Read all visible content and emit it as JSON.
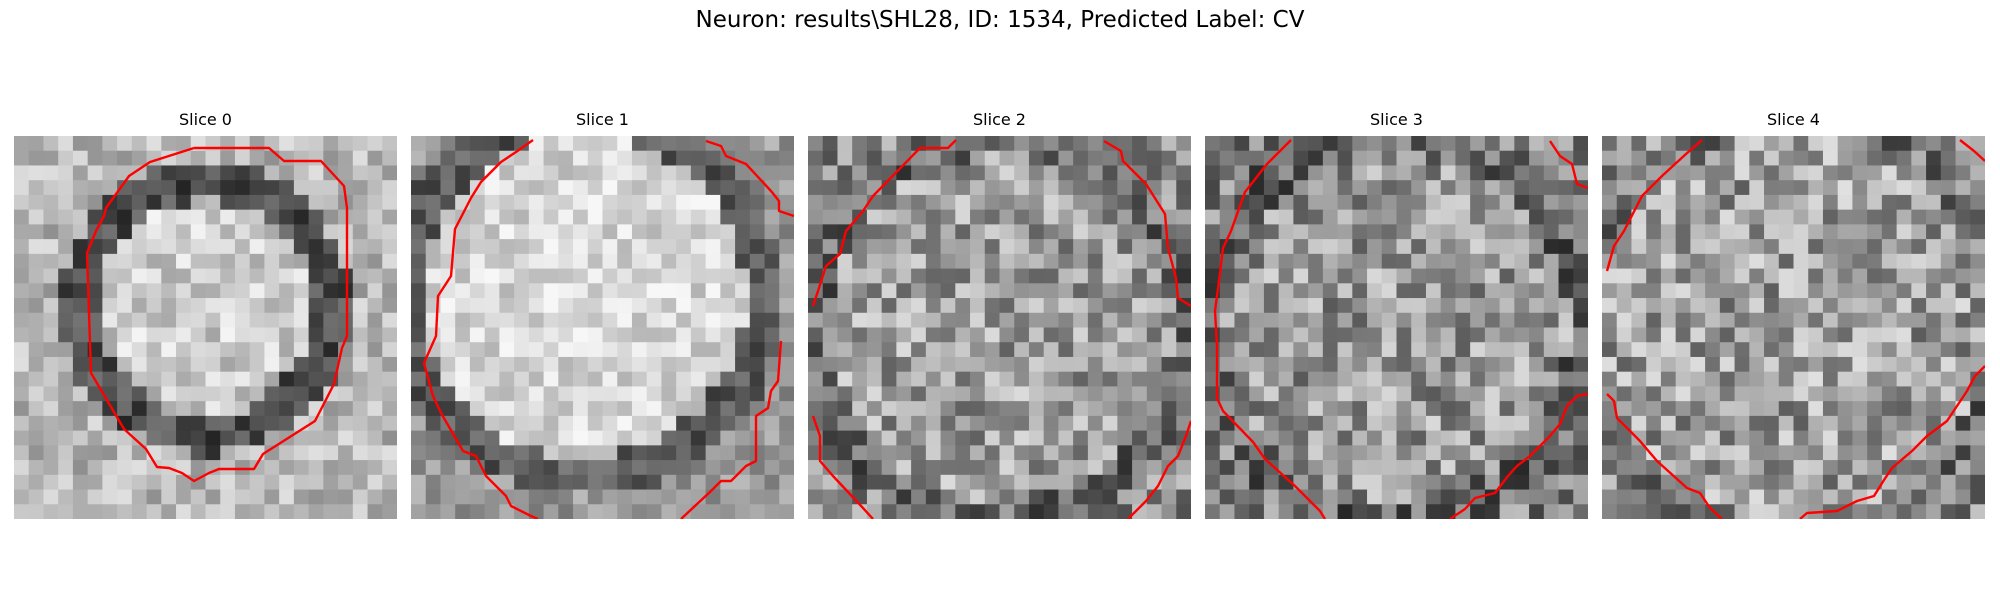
{
  "figure": {
    "suptitle": "Neuron: results\\SHL28, ID: 1534, Predicted Label: CV",
    "contour_color": "#ff0000",
    "colormap": "gray",
    "slices": [
      {
        "title": "Slice 0",
        "image": "grayscale-micrograph-slice-0"
      },
      {
        "title": "Slice 1",
        "image": "grayscale-micrograph-slice-1"
      },
      {
        "title": "Slice 2",
        "image": "grayscale-micrograph-slice-2"
      },
      {
        "title": "Slice 3",
        "image": "grayscale-micrograph-slice-3"
      },
      {
        "title": "Slice 4",
        "image": "grayscale-micrograph-slice-4"
      }
    ]
  }
}
